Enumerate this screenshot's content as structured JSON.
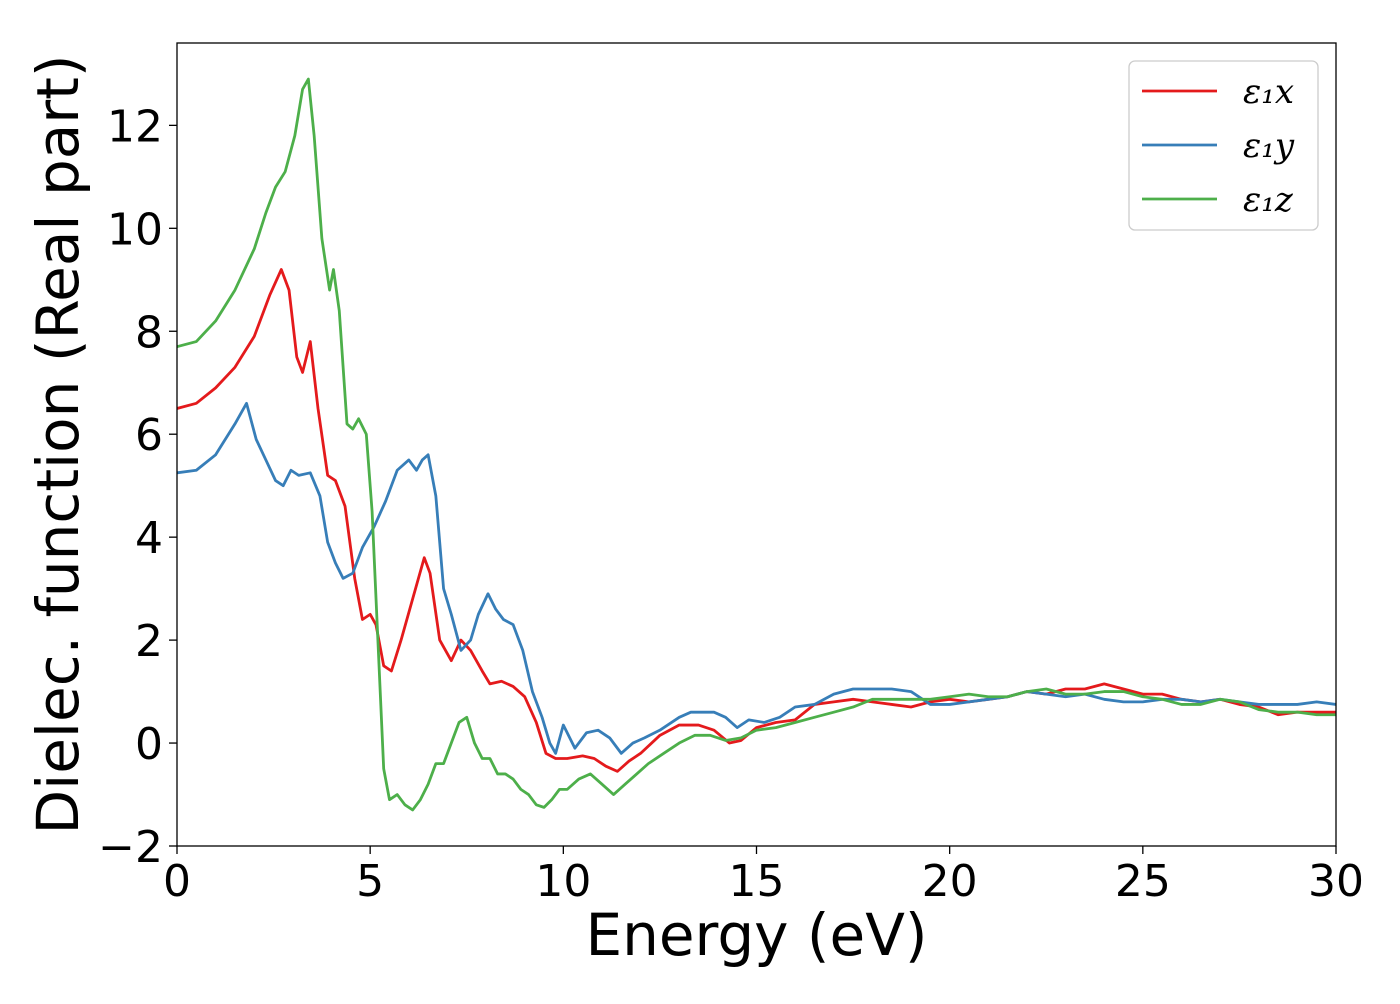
{
  "chart_data": {
    "type": "line",
    "title": "",
    "xlabel": "Energy (eV)",
    "ylabel": "Dielec. function (Real part)",
    "xlim": [
      0,
      30
    ],
    "ylim": [
      -2,
      13.6
    ],
    "xticks": [
      0,
      5,
      10,
      15,
      20,
      25,
      30
    ],
    "xtick_labels": [
      "0",
      "5",
      "10",
      "15",
      "20",
      "25",
      "30"
    ],
    "yticks": [
      -2,
      0,
      2,
      4,
      6,
      8,
      10,
      12
    ],
    "ytick_labels": [
      "−2",
      "0",
      "2",
      "4",
      "6",
      "8",
      "10",
      "12"
    ],
    "grid": false,
    "legend_position": "top-right",
    "series": [
      {
        "name": "ε₁x",
        "color": "#e41a1c",
        "x": [
          0,
          0.5,
          1.0,
          1.5,
          2.0,
          2.4,
          2.7,
          2.9,
          3.1,
          3.25,
          3.45,
          3.65,
          3.9,
          4.1,
          4.35,
          4.6,
          4.8,
          5.0,
          5.15,
          5.35,
          5.55,
          5.8,
          6.1,
          6.4,
          6.55,
          6.8,
          7.1,
          7.35,
          7.6,
          7.9,
          8.1,
          8.4,
          8.7,
          9.0,
          9.3,
          9.55,
          9.8,
          10.1,
          10.5,
          10.8,
          11.1,
          11.4,
          11.7,
          12.0,
          12.5,
          13.0,
          13.5,
          13.9,
          14.3,
          14.6,
          15.0,
          15.5,
          16.0,
          16.5,
          17.0,
          17.5,
          18.0,
          18.5,
          19.0,
          19.5,
          20.0,
          20.5,
          21.0,
          21.5,
          22.0,
          22.5,
          23.0,
          23.5,
          24.0,
          24.5,
          25.0,
          25.5,
          26.0,
          26.5,
          27.0,
          27.5,
          28.0,
          28.5,
          29.0,
          29.5,
          30.0
        ],
        "values": [
          6.5,
          6.6,
          6.9,
          7.3,
          7.9,
          8.7,
          9.2,
          8.8,
          7.5,
          7.2,
          7.8,
          6.5,
          5.2,
          5.1,
          4.6,
          3.2,
          2.4,
          2.5,
          2.3,
          1.5,
          1.4,
          2.0,
          2.8,
          3.6,
          3.3,
          2.0,
          1.6,
          2.0,
          1.8,
          1.4,
          1.15,
          1.2,
          1.1,
          0.9,
          0.4,
          -0.2,
          -0.3,
          -0.3,
          -0.25,
          -0.3,
          -0.45,
          -0.55,
          -0.35,
          -0.2,
          0.15,
          0.35,
          0.35,
          0.25,
          0.0,
          0.05,
          0.3,
          0.4,
          0.45,
          0.75,
          0.8,
          0.85,
          0.8,
          0.75,
          0.7,
          0.8,
          0.85,
          0.8,
          0.85,
          0.9,
          1.0,
          0.95,
          1.05,
          1.05,
          1.15,
          1.05,
          0.95,
          0.95,
          0.85,
          0.8,
          0.85,
          0.75,
          0.7,
          0.55,
          0.6,
          0.6,
          0.6
        ]
      },
      {
        "name": "ε₁y",
        "color": "#377eb8",
        "x": [
          0,
          0.5,
          1.0,
          1.5,
          1.8,
          2.05,
          2.3,
          2.55,
          2.75,
          2.95,
          3.15,
          3.45,
          3.7,
          3.9,
          4.1,
          4.3,
          4.55,
          4.8,
          5.1,
          5.4,
          5.7,
          6.0,
          6.2,
          6.35,
          6.5,
          6.7,
          6.9,
          7.1,
          7.35,
          7.6,
          7.8,
          8.05,
          8.25,
          8.45,
          8.7,
          8.95,
          9.2,
          9.45,
          9.65,
          9.8,
          10.0,
          10.3,
          10.6,
          10.9,
          11.2,
          11.5,
          11.8,
          12.1,
          12.5,
          13.0,
          13.3,
          13.6,
          13.9,
          14.2,
          14.5,
          14.8,
          15.2,
          15.6,
          16.0,
          16.5,
          17.0,
          17.5,
          18.0,
          18.5,
          19.0,
          19.5,
          20.0,
          20.5,
          21.0,
          21.5,
          22.0,
          22.5,
          23.0,
          23.5,
          24.0,
          24.5,
          25.0,
          25.5,
          26.0,
          26.5,
          27.0,
          27.5,
          28.0,
          28.5,
          29.0,
          29.5,
          30.0
        ],
        "values": [
          5.25,
          5.3,
          5.6,
          6.2,
          6.6,
          5.9,
          5.5,
          5.1,
          5.0,
          5.3,
          5.2,
          5.25,
          4.8,
          3.9,
          3.5,
          3.2,
          3.3,
          3.8,
          4.2,
          4.7,
          5.3,
          5.5,
          5.3,
          5.5,
          5.6,
          4.8,
          3.0,
          2.5,
          1.8,
          2.0,
          2.5,
          2.9,
          2.6,
          2.4,
          2.3,
          1.8,
          1.0,
          0.5,
          0.0,
          -0.2,
          0.35,
          -0.1,
          0.2,
          0.25,
          0.1,
          -0.2,
          0.0,
          0.1,
          0.25,
          0.5,
          0.6,
          0.6,
          0.6,
          0.5,
          0.3,
          0.45,
          0.4,
          0.5,
          0.7,
          0.75,
          0.95,
          1.05,
          1.05,
          1.05,
          1.0,
          0.75,
          0.75,
          0.8,
          0.85,
          0.9,
          1.0,
          0.95,
          0.9,
          0.95,
          0.85,
          0.8,
          0.8,
          0.85,
          0.85,
          0.8,
          0.85,
          0.8,
          0.75,
          0.75,
          0.75,
          0.8,
          0.75
        ]
      },
      {
        "name": "ε₁z",
        "color": "#4daf4a",
        "x": [
          0,
          0.5,
          1.0,
          1.5,
          2.0,
          2.3,
          2.55,
          2.8,
          3.05,
          3.25,
          3.4,
          3.55,
          3.75,
          3.95,
          4.05,
          4.2,
          4.4,
          4.55,
          4.7,
          4.9,
          5.05,
          5.2,
          5.35,
          5.5,
          5.7,
          5.9,
          6.1,
          6.3,
          6.5,
          6.7,
          6.9,
          7.1,
          7.3,
          7.5,
          7.7,
          7.9,
          8.1,
          8.3,
          8.5,
          8.7,
          8.9,
          9.1,
          9.3,
          9.5,
          9.7,
          9.9,
          10.1,
          10.4,
          10.7,
          11.0,
          11.3,
          11.6,
          11.9,
          12.2,
          12.6,
          13.0,
          13.4,
          13.8,
          14.2,
          14.6,
          15.0,
          15.5,
          16.0,
          16.5,
          17.0,
          17.5,
          18.0,
          18.5,
          19.0,
          19.5,
          20.0,
          20.5,
          21.0,
          21.5,
          22.0,
          22.5,
          23.0,
          23.5,
          24.0,
          24.5,
          25.0,
          25.5,
          26.0,
          26.5,
          27.0,
          27.5,
          28.0,
          28.5,
          29.0,
          29.5,
          30.0
        ],
        "values": [
          7.7,
          7.8,
          8.2,
          8.8,
          9.6,
          10.3,
          10.8,
          11.1,
          11.8,
          12.7,
          12.9,
          11.8,
          9.8,
          8.8,
          9.2,
          8.4,
          6.2,
          6.1,
          6.3,
          6.0,
          4.5,
          2.0,
          -0.5,
          -1.1,
          -1.0,
          -1.2,
          -1.3,
          -1.1,
          -0.8,
          -0.4,
          -0.4,
          0.0,
          0.4,
          0.5,
          0.0,
          -0.3,
          -0.3,
          -0.6,
          -0.6,
          -0.7,
          -0.9,
          -1.0,
          -1.2,
          -1.25,
          -1.1,
          -0.9,
          -0.9,
          -0.7,
          -0.6,
          -0.8,
          -1.0,
          -0.8,
          -0.6,
          -0.4,
          -0.2,
          0.0,
          0.15,
          0.15,
          0.05,
          0.1,
          0.25,
          0.3,
          0.4,
          0.5,
          0.6,
          0.7,
          0.85,
          0.85,
          0.85,
          0.85,
          0.9,
          0.95,
          0.9,
          0.9,
          1.0,
          1.05,
          0.95,
          0.95,
          1.0,
          1.0,
          0.9,
          0.85,
          0.75,
          0.75,
          0.85,
          0.8,
          0.65,
          0.6,
          0.6,
          0.55,
          0.55
        ]
      }
    ]
  }
}
